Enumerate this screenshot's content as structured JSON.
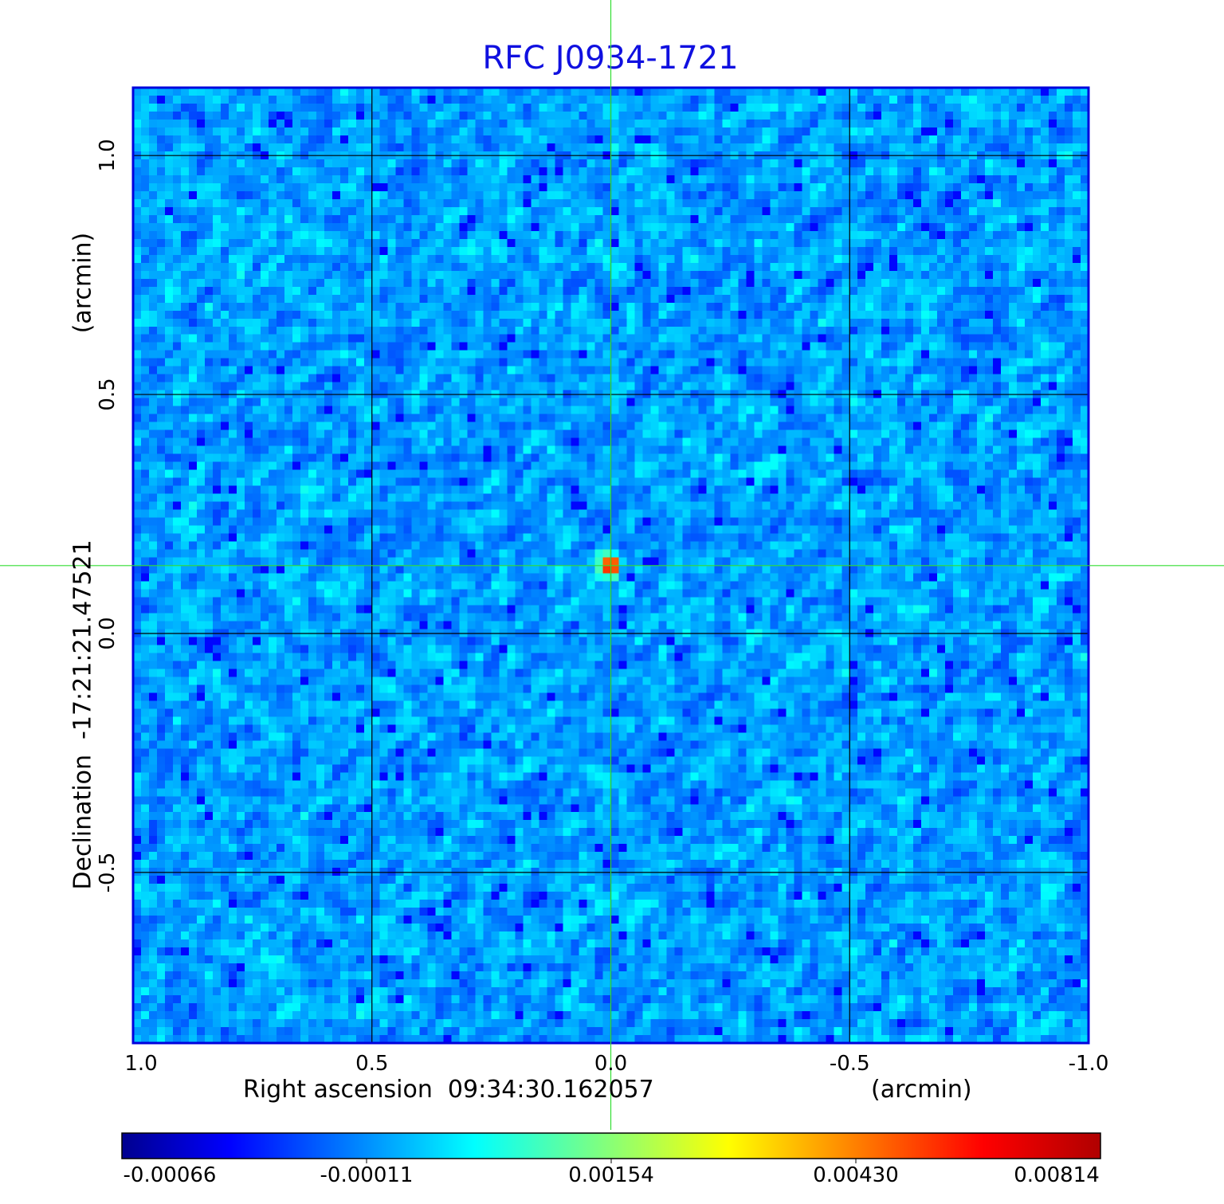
{
  "chart_data": {
    "type": "heatmap",
    "title": "RFC J0934-1721",
    "xlabel": "Right ascension  09:34:30.162057",
    "xunit": "(arcmin)",
    "ylabel": "Declination  -17:21:21.47521",
    "yunit": "(arcmin)",
    "xlim": [
      1.0,
      -1.0
    ],
    "ylim": [
      -0.857,
      1.142
    ],
    "xticks": [
      "1.0",
      "0.5",
      "0.0",
      "-0.5",
      "-1.0"
    ],
    "xtick_values": [
      1.0,
      0.5,
      0.0,
      -0.5,
      -1.0
    ],
    "yticks": [
      "-0.5",
      "0.0",
      "0.5",
      "1.0"
    ],
    "ytick_values": [
      -0.5,
      0.0,
      0.5,
      1.0
    ],
    "grid": true,
    "colormap": "jet",
    "colorbar": {
      "labels": [
        "-0.00066",
        "-0.00011",
        "0.00154",
        "0.00430",
        "0.00814"
      ],
      "values": [
        -0.00066,
        -0.00011,
        0.00154,
        0.0043,
        0.00814
      ]
    },
    "crosshair": {
      "x": 0.0,
      "y": 0.142
    },
    "peak": {
      "x": 0.0,
      "y": 0.142,
      "value": 0.00814
    },
    "background_level": 0.0,
    "grid_cells": 120
  },
  "colors": {
    "title": "#1010e0",
    "frame": "#0000dd",
    "crosshair": "#33dd33",
    "grid": "#000000"
  }
}
